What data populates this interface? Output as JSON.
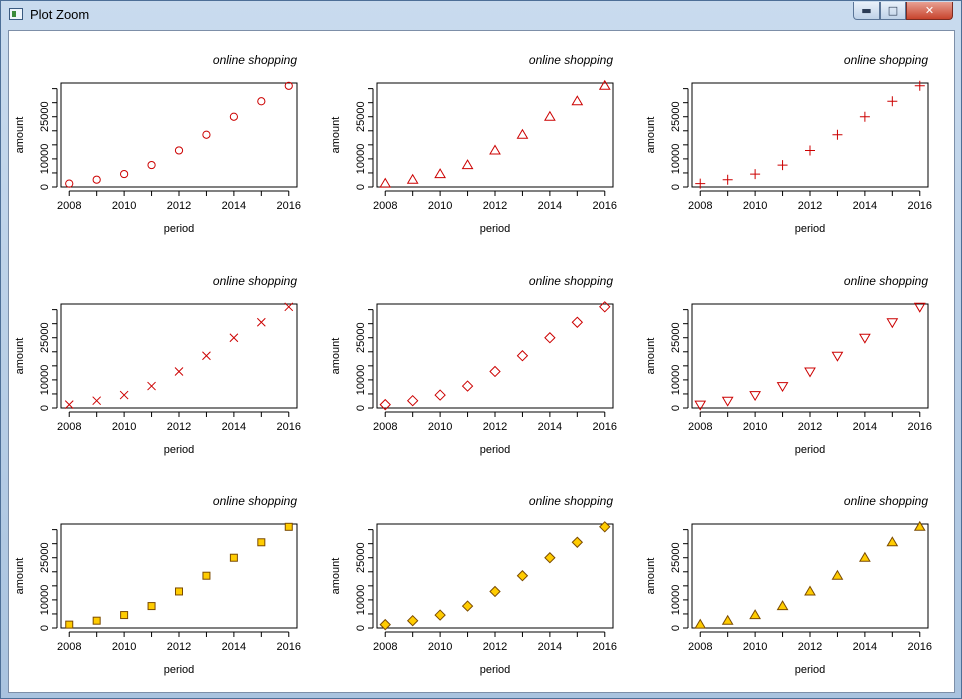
{
  "window": {
    "title": "Plot Zoom",
    "min_label": "▬",
    "max_label": "□",
    "close_label": "✕"
  },
  "chart_data": [
    {
      "type": "scatter",
      "title": "online shopping",
      "xlabel": "period",
      "ylabel": "amount",
      "x": [
        2008,
        2009,
        2010,
        2011,
        2012,
        2013,
        2014,
        2015,
        2016
      ],
      "y": [
        1200,
        2600,
        4600,
        7800,
        13000,
        18600,
        25000,
        30500,
        36000
      ],
      "xticks": [
        "2008",
        "2010",
        "2012",
        "2014",
        "2016"
      ],
      "yticks": [
        "0",
        "10000",
        "25000"
      ],
      "ylim": [
        0,
        37000
      ],
      "marker": "circle",
      "color": "#cc0000",
      "fill": "none"
    },
    {
      "type": "scatter",
      "title": "online shopping",
      "xlabel": "period",
      "ylabel": "amount",
      "x": [
        2008,
        2009,
        2010,
        2011,
        2012,
        2013,
        2014,
        2015,
        2016
      ],
      "y": [
        1200,
        2600,
        4600,
        7800,
        13000,
        18600,
        25000,
        30500,
        36000
      ],
      "xticks": [
        "2008",
        "2010",
        "2012",
        "2014",
        "2016"
      ],
      "yticks": [
        "0",
        "10000",
        "25000"
      ],
      "ylim": [
        0,
        37000
      ],
      "marker": "triangle-up",
      "color": "#cc0000",
      "fill": "none"
    },
    {
      "type": "scatter",
      "title": "online shopping",
      "xlabel": "period",
      "ylabel": "amount",
      "x": [
        2008,
        2009,
        2010,
        2011,
        2012,
        2013,
        2014,
        2015,
        2016
      ],
      "y": [
        1200,
        2600,
        4600,
        7800,
        13000,
        18600,
        25000,
        30500,
        36000
      ],
      "xticks": [
        "2008",
        "2010",
        "2012",
        "2014",
        "2016"
      ],
      "yticks": [
        "0",
        "10000",
        "25000"
      ],
      "ylim": [
        0,
        37000
      ],
      "marker": "plus",
      "color": "#cc0000",
      "fill": "none"
    },
    {
      "type": "scatter",
      "title": "online shopping",
      "xlabel": "period",
      "ylabel": "amount",
      "x": [
        2008,
        2009,
        2010,
        2011,
        2012,
        2013,
        2014,
        2015,
        2016
      ],
      "y": [
        1200,
        2600,
        4600,
        7800,
        13000,
        18600,
        25000,
        30500,
        36000
      ],
      "xticks": [
        "2008",
        "2010",
        "2012",
        "2014",
        "2016"
      ],
      "yticks": [
        "0",
        "10000",
        "25000"
      ],
      "ylim": [
        0,
        37000
      ],
      "marker": "cross",
      "color": "#cc0000",
      "fill": "none"
    },
    {
      "type": "scatter",
      "title": "online shopping",
      "xlabel": "period",
      "ylabel": "amount",
      "x": [
        2008,
        2009,
        2010,
        2011,
        2012,
        2013,
        2014,
        2015,
        2016
      ],
      "y": [
        1200,
        2600,
        4600,
        7800,
        13000,
        18600,
        25000,
        30500,
        36000
      ],
      "xticks": [
        "2008",
        "2010",
        "2012",
        "2014",
        "2016"
      ],
      "yticks": [
        "0",
        "10000",
        "25000"
      ],
      "ylim": [
        0,
        37000
      ],
      "marker": "diamond",
      "color": "#cc0000",
      "fill": "none"
    },
    {
      "type": "scatter",
      "title": "online shopping",
      "xlabel": "period",
      "ylabel": "amount",
      "x": [
        2008,
        2009,
        2010,
        2011,
        2012,
        2013,
        2014,
        2015,
        2016
      ],
      "y": [
        1200,
        2600,
        4600,
        7800,
        13000,
        18600,
        25000,
        30500,
        36000
      ],
      "xticks": [
        "2008",
        "2010",
        "2012",
        "2014",
        "2016"
      ],
      "yticks": [
        "0",
        "10000",
        "25000"
      ],
      "ylim": [
        0,
        37000
      ],
      "marker": "triangle-down",
      "color": "#cc0000",
      "fill": "none"
    },
    {
      "type": "scatter",
      "title": "online shopping",
      "xlabel": "period",
      "ylabel": "amount",
      "x": [
        2008,
        2009,
        2010,
        2011,
        2012,
        2013,
        2014,
        2015,
        2016
      ],
      "y": [
        1200,
        2600,
        4600,
        7800,
        13000,
        18600,
        25000,
        30500,
        36000
      ],
      "xticks": [
        "2008",
        "2010",
        "2012",
        "2014",
        "2016"
      ],
      "yticks": [
        "0",
        "10000",
        "25000"
      ],
      "ylim": [
        0,
        37000
      ],
      "marker": "square",
      "color": "#7a4a00",
      "fill": "#ffcc00"
    },
    {
      "type": "scatter",
      "title": "online shopping",
      "xlabel": "period",
      "ylabel": "amount",
      "x": [
        2008,
        2009,
        2010,
        2011,
        2012,
        2013,
        2014,
        2015,
        2016
      ],
      "y": [
        1200,
        2600,
        4600,
        7800,
        13000,
        18600,
        25000,
        30500,
        36000
      ],
      "xticks": [
        "2008",
        "2010",
        "2012",
        "2014",
        "2016"
      ],
      "yticks": [
        "0",
        "10000",
        "25000"
      ],
      "ylim": [
        0,
        37000
      ],
      "marker": "diamond",
      "color": "#7a4a00",
      "fill": "#ffcc00"
    },
    {
      "type": "scatter",
      "title": "online shopping",
      "xlabel": "period",
      "ylabel": "amount",
      "x": [
        2008,
        2009,
        2010,
        2011,
        2012,
        2013,
        2014,
        2015,
        2016
      ],
      "y": [
        1200,
        2600,
        4600,
        7800,
        13000,
        18600,
        25000,
        30500,
        36000
      ],
      "xticks": [
        "2008",
        "2010",
        "2012",
        "2014",
        "2016"
      ],
      "yticks": [
        "0",
        "10000",
        "25000"
      ],
      "ylim": [
        0,
        37000
      ],
      "marker": "triangle-up",
      "color": "#7a4a00",
      "fill": "#ffcc00"
    }
  ]
}
